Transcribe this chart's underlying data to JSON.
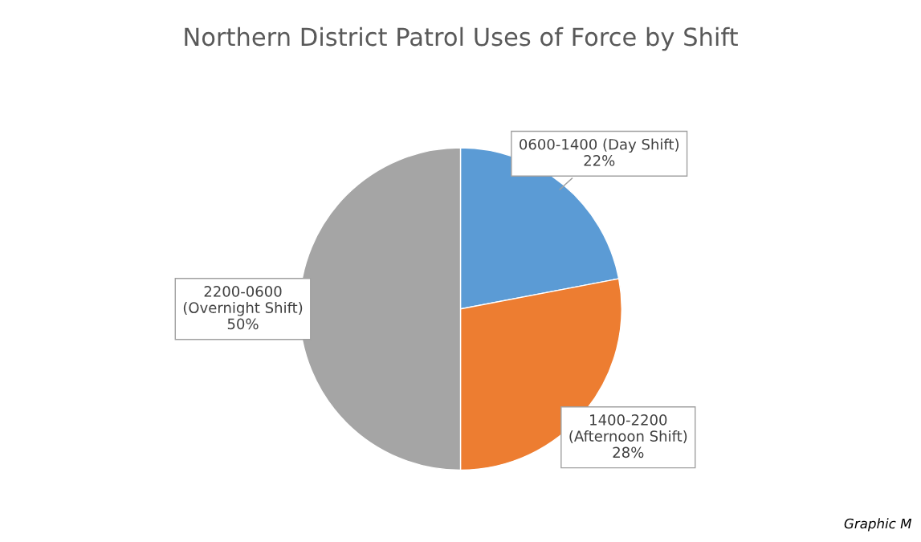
{
  "chart_data": {
    "type": "pie",
    "title": "Northern District Patrol Uses of Force by Shift",
    "categories": [
      "0600-1400 (Day Shift)",
      "1400-2200\n(Afternoon Shift)",
      "2200-0600\n(Overnight Shift)"
    ],
    "values": [
      22,
      28,
      50
    ],
    "value_labels": [
      "22%",
      "28%",
      "50%"
    ],
    "colors": [
      "#5b9bd5",
      "#ed7d31",
      "#a5a5a5"
    ],
    "legend": false,
    "annotations": [
      "Graphic M"
    ]
  }
}
